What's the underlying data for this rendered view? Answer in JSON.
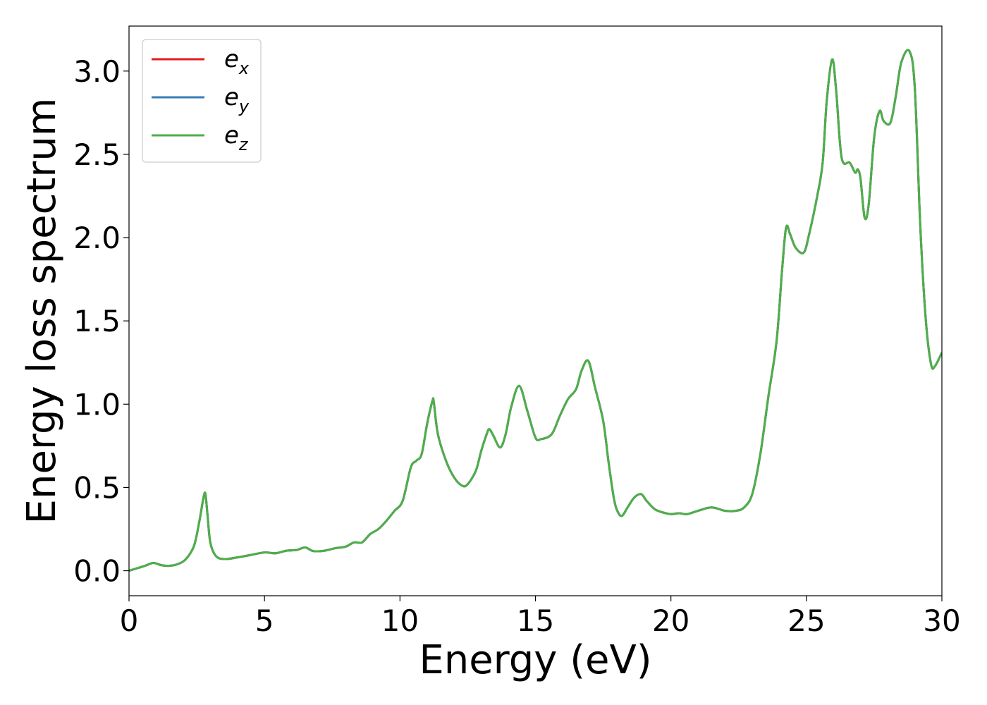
{
  "chart_data": {
    "type": "line",
    "title": "",
    "xlabel": "Energy (eV)",
    "ylabel": "Energy loss spectrum",
    "xlim": [
      0,
      30
    ],
    "ylim": [
      -0.15,
      3.27
    ],
    "xticks": [
      0,
      5,
      10,
      15,
      20,
      25,
      30
    ],
    "xtick_labels": [
      "0",
      "5",
      "10",
      "15",
      "20",
      "25",
      "30"
    ],
    "yticks": [
      0.0,
      0.5,
      1.0,
      1.5,
      2.0,
      2.5,
      3.0
    ],
    "ytick_labels": [
      "0.0",
      "0.5",
      "1.0",
      "1.5",
      "2.0",
      "2.5",
      "3.0"
    ],
    "grid": false,
    "legend_position": "top-left",
    "x": [
      0,
      0.3,
      0.6,
      0.9,
      1.2,
      1.5,
      1.8,
      2.1,
      2.4,
      2.6,
      2.75,
      2.82,
      2.9,
      3.0,
      3.2,
      3.5,
      4.0,
      4.5,
      5.0,
      5.4,
      5.8,
      6.2,
      6.5,
      6.8,
      7.2,
      7.6,
      8.0,
      8.3,
      8.6,
      8.9,
      9.2,
      9.5,
      9.8,
      10.1,
      10.4,
      10.6,
      10.8,
      11.0,
      11.2,
      11.25,
      11.4,
      11.7,
      12.0,
      12.3,
      12.5,
      12.8,
      13.0,
      13.2,
      13.3,
      13.45,
      13.7,
      13.9,
      14.1,
      14.4,
      14.7,
      15.0,
      15.2,
      15.6,
      15.9,
      16.2,
      16.5,
      16.7,
      16.95,
      17.2,
      17.5,
      17.7,
      17.9,
      18.05,
      18.2,
      18.4,
      18.65,
      18.9,
      19.1,
      19.4,
      19.7,
      20.0,
      20.3,
      20.6,
      21.0,
      21.5,
      22.0,
      22.4,
      22.7,
      23.0,
      23.3,
      23.6,
      23.9,
      24.1,
      24.25,
      24.4,
      24.6,
      24.9,
      25.1,
      25.4,
      25.6,
      25.75,
      25.95,
      26.1,
      26.3,
      26.6,
      26.8,
      26.9,
      27.0,
      27.15,
      27.3,
      27.5,
      27.7,
      27.85,
      28.1,
      28.3,
      28.5,
      28.8,
      29.0,
      29.2,
      29.4,
      29.6,
      29.75,
      30.0
    ],
    "series": [
      {
        "name": "e_x",
        "label_base": "e",
        "label_sub": "x",
        "color": "#e41a1c",
        "y": [
          0.0,
          0.015,
          0.03,
          0.047,
          0.033,
          0.03,
          0.04,
          0.07,
          0.15,
          0.3,
          0.44,
          0.46,
          0.33,
          0.17,
          0.09,
          0.07,
          0.08,
          0.095,
          0.11,
          0.105,
          0.12,
          0.125,
          0.14,
          0.118,
          0.12,
          0.135,
          0.145,
          0.17,
          0.17,
          0.22,
          0.25,
          0.3,
          0.36,
          0.42,
          0.62,
          0.66,
          0.7,
          0.88,
          1.02,
          1.01,
          0.82,
          0.66,
          0.56,
          0.51,
          0.52,
          0.6,
          0.72,
          0.82,
          0.85,
          0.81,
          0.74,
          0.82,
          0.98,
          1.11,
          0.96,
          0.8,
          0.79,
          0.82,
          0.93,
          1.03,
          1.09,
          1.2,
          1.26,
          1.1,
          0.9,
          0.65,
          0.43,
          0.35,
          0.33,
          0.38,
          0.44,
          0.46,
          0.42,
          0.37,
          0.35,
          0.34,
          0.345,
          0.34,
          0.36,
          0.38,
          0.36,
          0.36,
          0.38,
          0.46,
          0.7,
          1.05,
          1.38,
          1.8,
          2.06,
          2.02,
          1.94,
          1.91,
          2.02,
          2.25,
          2.45,
          2.82,
          3.07,
          2.88,
          2.48,
          2.45,
          2.39,
          2.41,
          2.35,
          2.12,
          2.2,
          2.6,
          2.76,
          2.7,
          2.69,
          2.85,
          3.05,
          3.12,
          2.9,
          2.08,
          1.52,
          1.24,
          1.23,
          1.31
        ]
      },
      {
        "name": "e_y",
        "label_base": "e",
        "label_sub": "y",
        "color": "#377eb8",
        "y": [
          0.0,
          0.015,
          0.03,
          0.047,
          0.033,
          0.03,
          0.04,
          0.07,
          0.15,
          0.3,
          0.44,
          0.46,
          0.33,
          0.17,
          0.09,
          0.07,
          0.08,
          0.095,
          0.11,
          0.105,
          0.12,
          0.125,
          0.14,
          0.118,
          0.12,
          0.135,
          0.145,
          0.17,
          0.17,
          0.22,
          0.25,
          0.3,
          0.36,
          0.42,
          0.62,
          0.66,
          0.7,
          0.88,
          1.02,
          1.01,
          0.82,
          0.66,
          0.56,
          0.51,
          0.52,
          0.6,
          0.72,
          0.82,
          0.85,
          0.81,
          0.74,
          0.82,
          0.98,
          1.11,
          0.96,
          0.8,
          0.79,
          0.82,
          0.93,
          1.03,
          1.09,
          1.2,
          1.26,
          1.1,
          0.9,
          0.65,
          0.43,
          0.35,
          0.33,
          0.38,
          0.44,
          0.46,
          0.42,
          0.37,
          0.35,
          0.34,
          0.345,
          0.34,
          0.36,
          0.38,
          0.36,
          0.36,
          0.38,
          0.46,
          0.7,
          1.05,
          1.38,
          1.8,
          2.06,
          2.02,
          1.94,
          1.91,
          2.02,
          2.25,
          2.45,
          2.82,
          3.07,
          2.88,
          2.48,
          2.45,
          2.39,
          2.41,
          2.35,
          2.12,
          2.2,
          2.6,
          2.76,
          2.7,
          2.69,
          2.85,
          3.05,
          3.12,
          2.9,
          2.08,
          1.52,
          1.24,
          1.23,
          1.31
        ]
      },
      {
        "name": "e_z",
        "label_base": "e",
        "label_sub": "z",
        "color": "#4daf4a",
        "y": [
          0.0,
          0.015,
          0.03,
          0.047,
          0.033,
          0.03,
          0.04,
          0.07,
          0.15,
          0.3,
          0.44,
          0.46,
          0.33,
          0.17,
          0.09,
          0.07,
          0.08,
          0.095,
          0.11,
          0.105,
          0.12,
          0.125,
          0.14,
          0.118,
          0.12,
          0.135,
          0.145,
          0.17,
          0.17,
          0.22,
          0.25,
          0.3,
          0.36,
          0.42,
          0.62,
          0.66,
          0.7,
          0.88,
          1.02,
          1.01,
          0.82,
          0.66,
          0.56,
          0.51,
          0.52,
          0.6,
          0.72,
          0.82,
          0.85,
          0.81,
          0.74,
          0.82,
          0.98,
          1.11,
          0.96,
          0.8,
          0.79,
          0.82,
          0.93,
          1.03,
          1.09,
          1.2,
          1.26,
          1.1,
          0.9,
          0.65,
          0.43,
          0.35,
          0.33,
          0.38,
          0.44,
          0.46,
          0.42,
          0.37,
          0.35,
          0.34,
          0.345,
          0.34,
          0.36,
          0.38,
          0.36,
          0.36,
          0.38,
          0.46,
          0.7,
          1.05,
          1.38,
          1.8,
          2.06,
          2.02,
          1.94,
          1.91,
          2.02,
          2.25,
          2.45,
          2.82,
          3.07,
          2.88,
          2.48,
          2.45,
          2.39,
          2.41,
          2.35,
          2.12,
          2.2,
          2.6,
          2.76,
          2.7,
          2.69,
          2.85,
          3.05,
          3.12,
          2.9,
          2.08,
          1.52,
          1.24,
          1.23,
          1.31
        ]
      }
    ]
  }
}
